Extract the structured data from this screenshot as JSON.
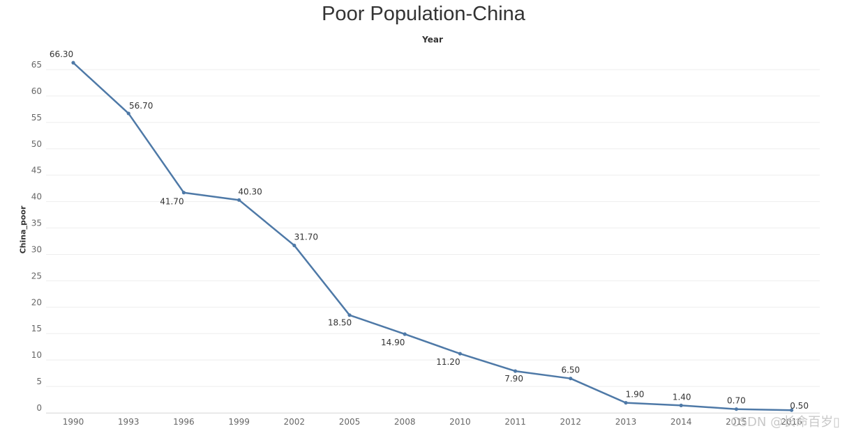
{
  "chart_data": {
    "type": "line",
    "title": "Poor Population-China",
    "x_header": "Year",
    "ylabel": "China_poor",
    "categories": [
      "1990",
      "1993",
      "1996",
      "1999",
      "2002",
      "2005",
      "2008",
      "2010",
      "2011",
      "2012",
      "2013",
      "2014",
      "2015",
      "2016"
    ],
    "series": [
      {
        "values": [
          66.3,
          56.7,
          41.7,
          40.3,
          31.7,
          18.5,
          14.9,
          11.2,
          7.9,
          6.5,
          1.9,
          1.4,
          0.7,
          0.5
        ],
        "color": "#4e79a7"
      }
    ],
    "data_labels": [
      "66.30",
      "56.70",
      "41.70",
      "40.30",
      "31.70",
      "18.50",
      "14.90",
      "11.20",
      "7.90",
      "6.50",
      "1.90",
      "1.40",
      "0.70",
      "0.50"
    ],
    "yticks": [
      0,
      5,
      10,
      15,
      20,
      25,
      30,
      35,
      40,
      45,
      50,
      55,
      60,
      65
    ],
    "ylim": [
      0,
      68
    ],
    "grid": true,
    "legend": "none"
  },
  "watermark": "CSDN @长命百岁▯"
}
